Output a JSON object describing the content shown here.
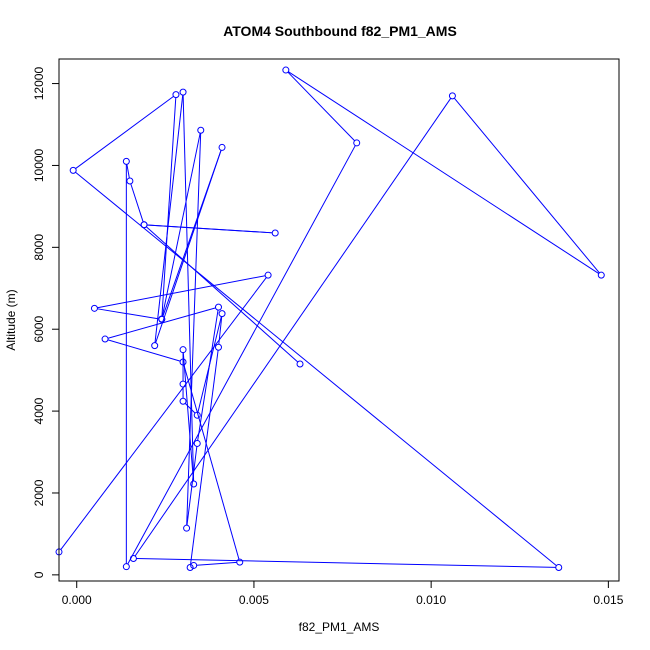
{
  "chart_data": {
    "type": "line",
    "title": "ATOM4 Southbound f82_PM1_AMS",
    "xlabel": "f82_PM1_AMS",
    "ylabel": "Altitude (m)",
    "xlim": [
      -0.0005,
      0.0153
    ],
    "ylim": [
      -150,
      12600
    ],
    "x_ticks": [
      0.0,
      0.005,
      0.01,
      0.015
    ],
    "x_tick_labels": [
      "0.000",
      "0.005",
      "0.010",
      "0.015"
    ],
    "y_ticks": [
      0,
      2000,
      4000,
      6000,
      8000,
      10000,
      12000
    ],
    "y_tick_labels": [
      "0",
      "2000",
      "4000",
      "6000",
      "8000",
      "10000",
      "12000"
    ],
    "grid": false,
    "marker": "open-circle",
    "series": [
      {
        "color": "#0000ff",
        "points": [
          {
            "x": 0.0063,
            "y": 5150
          },
          {
            "x": 0.0019,
            "y": 8550
          },
          {
            "x": 0.0056,
            "y": 8350
          },
          {
            "x": 0.0019,
            "y": 8550
          },
          {
            "x": 0.0015,
            "y": 9620
          },
          {
            "x": 0.0014,
            "y": 10100
          },
          {
            "x": 0.0014,
            "y": 200
          },
          {
            "x": 0.0079,
            "y": 10550
          },
          {
            "x": 0.0059,
            "y": 12330
          },
          {
            "x": 0.0148,
            "y": 7320
          },
          {
            "x": 0.0106,
            "y": 11700
          },
          {
            "x": 0.0016,
            "y": 400
          },
          {
            "x": 0.0136,
            "y": 180
          },
          {
            "x": -0.0001,
            "y": 9880
          },
          {
            "x": 0.0028,
            "y": 11730
          },
          {
            "x": 0.0024,
            "y": 6250
          },
          {
            "x": 0.0035,
            "y": 10860
          },
          {
            "x": 0.0031,
            "y": 1140
          },
          {
            "x": 0.0034,
            "y": 3210
          },
          {
            "x": 0.004,
            "y": 6540
          },
          {
            "x": 0.0008,
            "y": 5760
          },
          {
            "x": 0.003,
            "y": 5200
          },
          {
            "x": 0.0046,
            "y": 310
          },
          {
            "x": 0.0033,
            "y": 230
          },
          {
            "x": 0.0032,
            "y": 180
          },
          {
            "x": 0.004,
            "y": 5560
          },
          {
            "x": 0.0041,
            "y": 6380
          },
          {
            "x": 0.0034,
            "y": 3900
          },
          {
            "x": 0.003,
            "y": 4240
          },
          {
            "x": 0.003,
            "y": 4660
          },
          {
            "x": 0.003,
            "y": 5500
          },
          {
            "x": 0.0033,
            "y": 2220
          },
          {
            "x": 0.003,
            "y": 11790
          },
          {
            "x": 0.0022,
            "y": 5600
          },
          {
            "x": 0.0041,
            "y": 10440
          },
          {
            "x": 0.0024,
            "y": 6240
          },
          {
            "x": 0.0005,
            "y": 6510
          },
          {
            "x": 0.0054,
            "y": 7320
          },
          {
            "x": -0.0005,
            "y": 560
          }
        ]
      }
    ]
  }
}
